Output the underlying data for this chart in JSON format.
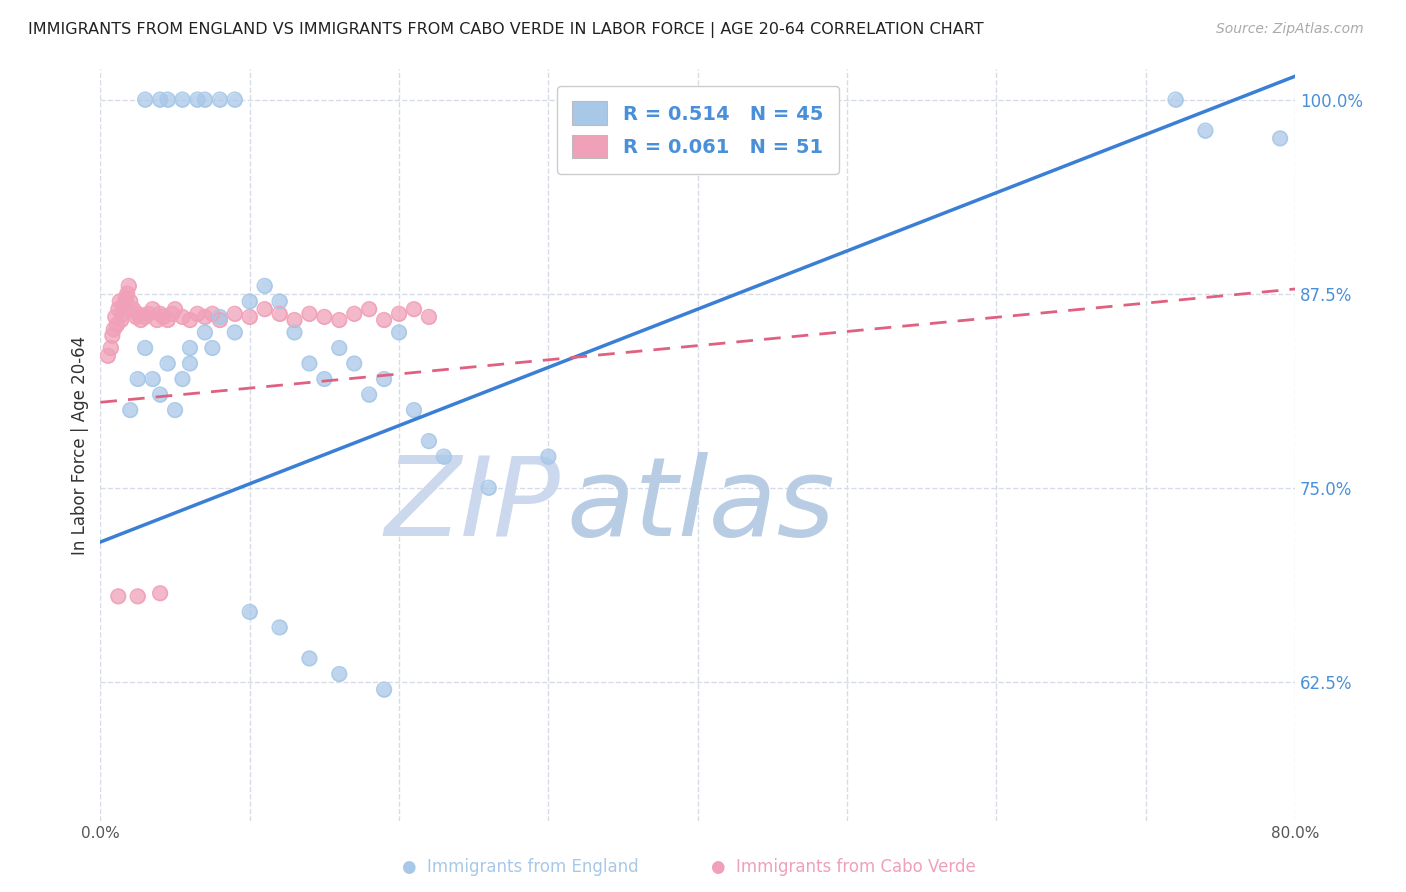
{
  "title": "IMMIGRANTS FROM ENGLAND VS IMMIGRANTS FROM CABO VERDE IN LABOR FORCE | AGE 20-64 CORRELATION CHART",
  "source": "Source: ZipAtlas.com",
  "ylabel": "In Labor Force | Age 20-64",
  "xlim": [
    0.0,
    0.8
  ],
  "ylim": [
    0.535,
    1.02
  ],
  "yticks": [
    0.625,
    0.75,
    0.875,
    1.0
  ],
  "ytick_labels": [
    "62.5%",
    "75.0%",
    "87.5%",
    "100.0%"
  ],
  "xticks": [
    0.0,
    0.1,
    0.2,
    0.3,
    0.4,
    0.5,
    0.6,
    0.7,
    0.8
  ],
  "xtick_labels": [
    "0.0%",
    "",
    "",
    "",
    "",
    "",
    "",
    "",
    "80.0%"
  ],
  "england_color": "#a8c8e8",
  "cabo_color": "#f0a0b8",
  "england_line_color": "#3a7fd5",
  "cabo_line_color": "#e06080",
  "grid_color": "#d5dce8",
  "watermark_color": "#ccd8ee",
  "england_line_x0": 0.0,
  "england_line_y0": 0.715,
  "england_line_x1": 0.8,
  "england_line_y1": 1.015,
  "cabo_line_x0": 0.0,
  "cabo_line_y0": 0.805,
  "cabo_line_x1": 0.8,
  "cabo_line_y1": 0.878,
  "eng_x": [
    0.03,
    0.04,
    0.045,
    0.055,
    0.065,
    0.07,
    0.08,
    0.09,
    0.02,
    0.025,
    0.03,
    0.035,
    0.04,
    0.045,
    0.05,
    0.055,
    0.06,
    0.06,
    0.07,
    0.075,
    0.08,
    0.09,
    0.1,
    0.11,
    0.12,
    0.13,
    0.14,
    0.15,
    0.16,
    0.17,
    0.18,
    0.19,
    0.2,
    0.21,
    0.22,
    0.23,
    0.26,
    0.3,
    0.1,
    0.12,
    0.14,
    0.16,
    0.19,
    0.72,
    0.74,
    0.79
  ],
  "eng_y": [
    1.0,
    1.0,
    1.0,
    1.0,
    1.0,
    1.0,
    1.0,
    1.0,
    0.8,
    0.82,
    0.84,
    0.82,
    0.81,
    0.83,
    0.8,
    0.82,
    0.84,
    0.83,
    0.85,
    0.84,
    0.86,
    0.85,
    0.87,
    0.88,
    0.87,
    0.85,
    0.83,
    0.82,
    0.84,
    0.83,
    0.81,
    0.82,
    0.85,
    0.8,
    0.78,
    0.77,
    0.75,
    0.77,
    0.67,
    0.66,
    0.64,
    0.63,
    0.62,
    1.0,
    0.98,
    0.975
  ],
  "cabo_x": [
    0.005,
    0.007,
    0.008,
    0.009,
    0.01,
    0.011,
    0.012,
    0.013,
    0.014,
    0.015,
    0.016,
    0.017,
    0.018,
    0.019,
    0.02,
    0.022,
    0.024,
    0.025,
    0.027,
    0.03,
    0.032,
    0.035,
    0.038,
    0.04,
    0.042,
    0.045,
    0.048,
    0.05,
    0.055,
    0.06,
    0.065,
    0.07,
    0.075,
    0.08,
    0.09,
    0.1,
    0.11,
    0.12,
    0.13,
    0.14,
    0.15,
    0.16,
    0.17,
    0.18,
    0.19,
    0.2,
    0.21,
    0.22,
    0.012,
    0.025,
    0.04
  ],
  "cabo_y": [
    0.835,
    0.84,
    0.848,
    0.852,
    0.86,
    0.855,
    0.865,
    0.87,
    0.858,
    0.862,
    0.868,
    0.872,
    0.875,
    0.88,
    0.87,
    0.865,
    0.86,
    0.862,
    0.858,
    0.86,
    0.862,
    0.865,
    0.858,
    0.862,
    0.86,
    0.858,
    0.862,
    0.865,
    0.86,
    0.858,
    0.862,
    0.86,
    0.862,
    0.858,
    0.862,
    0.86,
    0.865,
    0.862,
    0.858,
    0.862,
    0.86,
    0.858,
    0.862,
    0.865,
    0.858,
    0.862,
    0.865,
    0.86,
    0.68,
    0.68,
    0.682
  ]
}
